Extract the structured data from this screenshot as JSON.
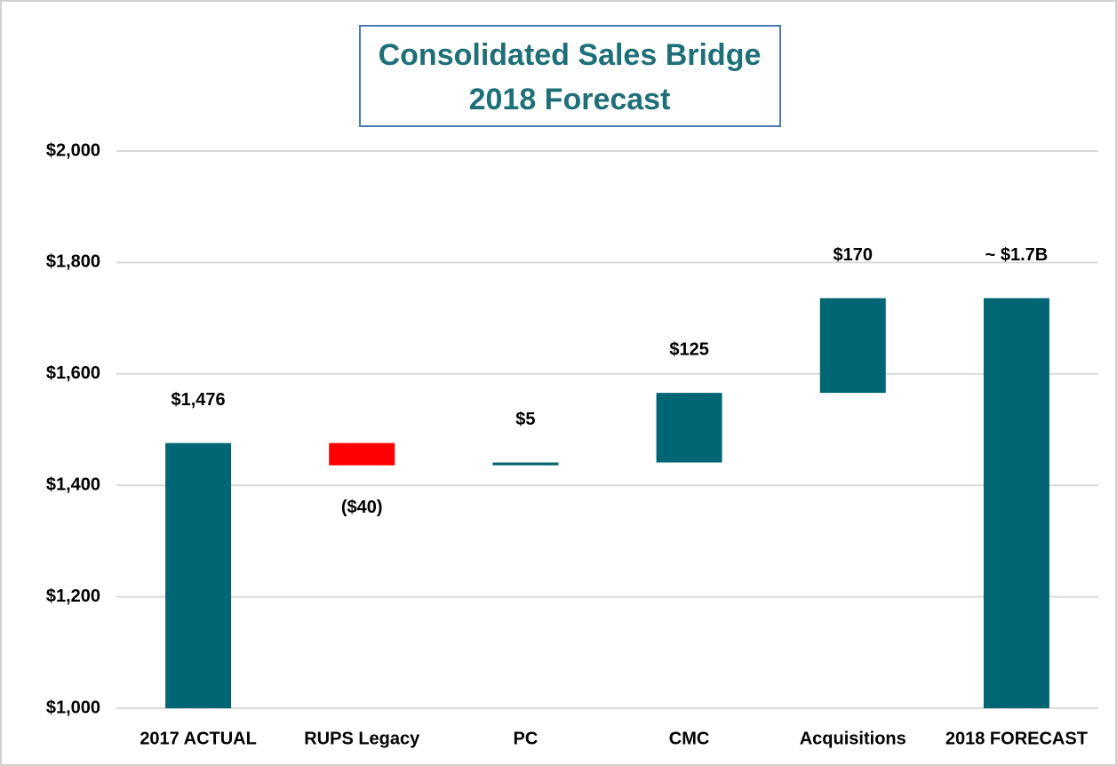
{
  "chart_data": {
    "type": "waterfall",
    "title": "Consolidated Sales Bridge",
    "subtitle": "2018 Forecast",
    "categories": [
      "2017 ACTUAL",
      "RUPS Legacy",
      "PC",
      "CMC",
      "Acquisitions",
      "2018 FORECAST"
    ],
    "measure": [
      "absolute",
      "relative",
      "relative",
      "relative",
      "relative",
      "total"
    ],
    "values": [
      1476,
      -40,
      5,
      125,
      170,
      1736
    ],
    "value_labels": [
      "$1,476",
      "($40)",
      "$5",
      "$125",
      "$170",
      "~ $1.7B"
    ],
    "color": "#006673",
    "negative_color": "#ff0000",
    "ylim": [
      1000,
      2000
    ],
    "yticks": [
      {
        "value": 1000,
        "label": "$1,000"
      },
      {
        "value": 1200,
        "label": "$1,200"
      },
      {
        "value": 1400,
        "label": "$1,400"
      },
      {
        "value": 1600,
        "label": "$1,600"
      },
      {
        "value": 1800,
        "label": "$1,800"
      },
      {
        "value": 2000,
        "label": "$2,000"
      }
    ],
    "grid": true
  }
}
